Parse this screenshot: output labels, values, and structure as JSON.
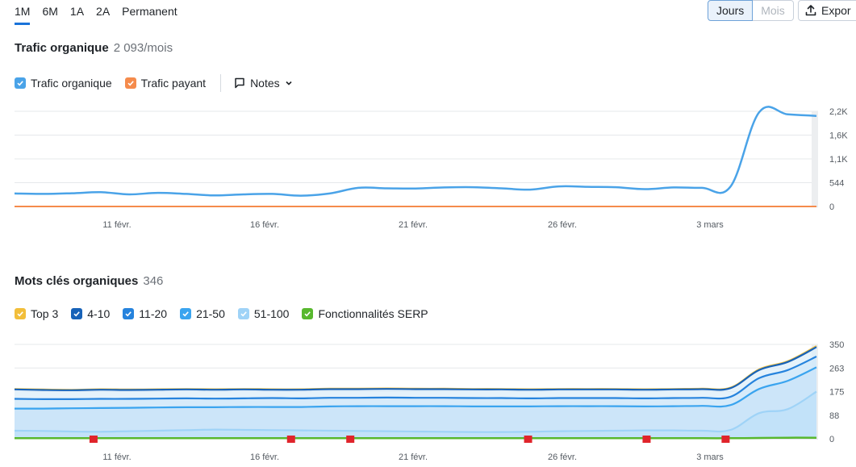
{
  "periods": [
    {
      "label": "1M",
      "active": true
    },
    {
      "label": "6M",
      "active": false
    },
    {
      "label": "1A",
      "active": false
    },
    {
      "label": "2A",
      "active": false
    },
    {
      "label": "Permanent",
      "active": false
    }
  ],
  "granularity": {
    "days": "Jours",
    "months": "Mois"
  },
  "export_label": "Expor",
  "traffic": {
    "title": "Trafic organique",
    "value": "2 093/mois",
    "legend": {
      "organic": "Trafic organique",
      "paid": "Trafic payant",
      "notes": "Notes"
    }
  },
  "keywords": {
    "title": "Mots clés organiques",
    "value": "346",
    "legend": {
      "top3": "Top 3",
      "k4_10": "4-10",
      "k11_20": "11-20",
      "k21_50": "21-50",
      "k51_100": "51-100",
      "serp": "Fonctionnalités SERP"
    }
  },
  "colors": {
    "organic": "#4aa3e8",
    "paid": "#f58b4c",
    "top3": "#f2be3a",
    "k4_10": "#1762b8",
    "k11_20": "#2683dd",
    "k21_50": "#3aa4ef",
    "k51_100": "#9fd3f7",
    "serp": "#58b82e",
    "marker": "#e0242b"
  },
  "chart_data": [
    {
      "type": "line",
      "title": "Trafic organique",
      "x_ticks": [
        "11 févr.",
        "16 févr.",
        "21 févr.",
        "26 févr.",
        "3 mars"
      ],
      "y_ticks": [
        "0",
        "544",
        "1,1K",
        "1,6K",
        "2,2K"
      ],
      "ylim": [
        0,
        2200
      ],
      "x": [
        "8 févr.",
        "9 févr.",
        "10 févr.",
        "11 févr.",
        "12 févr.",
        "13 févr.",
        "14 févr.",
        "15 févr.",
        "16 févr.",
        "17 févr.",
        "18 févr.",
        "19 févr.",
        "20 févr.",
        "21 févr.",
        "22 févr.",
        "23 févr.",
        "24 févr.",
        "25 févr.",
        "26 févr.",
        "27 févr.",
        "28 févr.",
        "29 févr.",
        "1 mars",
        "2 mars",
        "3 mars",
        "4 mars",
        "5 mars",
        "6 mars",
        "7 mars"
      ],
      "series": [
        {
          "name": "Trafic organique",
          "values": [
            300,
            290,
            305,
            330,
            280,
            315,
            290,
            255,
            280,
            290,
            250,
            300,
            430,
            420,
            415,
            440,
            445,
            420,
            390,
            465,
            455,
            445,
            400,
            440,
            430,
            460,
            2180,
            2130,
            2093
          ]
        },
        {
          "name": "Trafic payant",
          "values": [
            0,
            0,
            0,
            0,
            0,
            0,
            0,
            0,
            0,
            0,
            0,
            0,
            0,
            0,
            0,
            0,
            0,
            0,
            0,
            0,
            0,
            0,
            0,
            0,
            0,
            0,
            0,
            0,
            0
          ]
        }
      ],
      "grid": true
    },
    {
      "type": "area",
      "title": "Mots clés organiques",
      "x_ticks": [
        "11 févr.",
        "16 févr.",
        "21 févr.",
        "26 févr.",
        "3 mars"
      ],
      "y_ticks": [
        "0",
        "88",
        "175",
        "263",
        "350"
      ],
      "ylim": [
        0,
        350
      ],
      "x": [
        "8 févr.",
        "9 févr.",
        "10 févr.",
        "11 févr.",
        "12 févr.",
        "13 févr.",
        "14 févr.",
        "15 févr.",
        "16 févr.",
        "17 févr.",
        "18 févr.",
        "19 févr.",
        "20 févr.",
        "21 févr.",
        "22 févr.",
        "23 févr.",
        "24 févr.",
        "25 févr.",
        "26 févr.",
        "27 févr.",
        "28 févr.",
        "29 févr.",
        "1 mars",
        "2 mars",
        "3 mars",
        "4 mars",
        "5 mars",
        "6 mars",
        "7 mars"
      ],
      "series": [
        {
          "name": "Top 3",
          "values": [
            2,
            2,
            2,
            2,
            2,
            2,
            2,
            2,
            2,
            2,
            2,
            2,
            2,
            2,
            2,
            2,
            2,
            2,
            2,
            2,
            2,
            2,
            2,
            2,
            2,
            2,
            3,
            3,
            4
          ]
        },
        {
          "name": "4-10",
          "values": [
            183,
            181,
            180,
            182,
            181,
            182,
            183,
            182,
            183,
            182,
            182,
            184,
            184,
            185,
            184,
            184,
            183,
            183,
            182,
            183,
            183,
            183,
            182,
            183,
            184,
            188,
            255,
            285,
            340
          ]
        },
        {
          "name": "11-20",
          "values": [
            148,
            147,
            147,
            148,
            148,
            149,
            150,
            149,
            150,
            151,
            150,
            152,
            152,
            153,
            152,
            152,
            151,
            151,
            150,
            151,
            151,
            151,
            150,
            151,
            152,
            156,
            225,
            255,
            305
          ]
        },
        {
          "name": "21-50",
          "values": [
            112,
            112,
            113,
            114,
            115,
            116,
            117,
            117,
            118,
            118,
            118,
            120,
            121,
            121,
            121,
            121,
            120,
            120,
            120,
            121,
            121,
            121,
            120,
            121,
            122,
            125,
            185,
            215,
            265
          ]
        },
        {
          "name": "51-100",
          "values": [
            30,
            29,
            27,
            26,
            28,
            30,
            32,
            34,
            33,
            32,
            31,
            30,
            29,
            28,
            27,
            26,
            25,
            25,
            26,
            28,
            29,
            30,
            31,
            31,
            30,
            33,
            95,
            110,
            175
          ]
        },
        {
          "name": "Fonctionnalités SERP",
          "values": [
            2,
            2,
            2,
            2,
            2,
            2,
            2,
            2,
            2,
            2,
            2,
            2,
            2,
            2,
            2,
            2,
            2,
            2,
            2,
            2,
            2,
            2,
            2,
            2,
            2,
            2,
            3,
            4,
            4
          ]
        }
      ],
      "grid": true
    }
  ]
}
